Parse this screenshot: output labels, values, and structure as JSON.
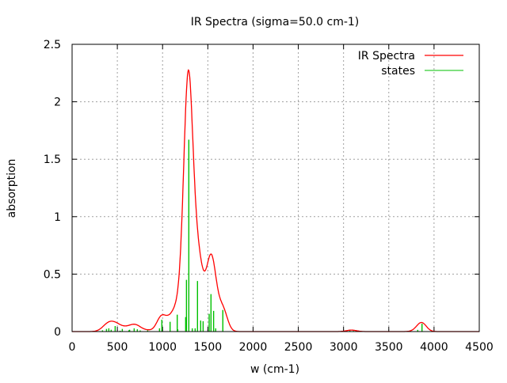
{
  "chart_data": {
    "type": "line",
    "title": "IR Spectra (sigma=50.0 cm-1)",
    "xlabel": "w (cm-1)",
    "ylabel": "absorption",
    "xlim": [
      0,
      4500
    ],
    "ylim": [
      0,
      2.5
    ],
    "xticks": [
      "0",
      "500",
      "1000",
      "1500",
      "2000",
      "2500",
      "3000",
      "3500",
      "4000",
      "4500"
    ],
    "yticks": [
      "0",
      "0.5",
      "1",
      "1.5",
      "2",
      "2.5"
    ],
    "grid": true,
    "legend_position": "top-right",
    "sigma": 50.0,
    "series": [
      {
        "name": "IR Spectra",
        "color": "#ff0000",
        "kind": "gaussian-broadened sum of states"
      },
      {
        "name": "states",
        "color": "#00c000",
        "kind": "impulses",
        "x": [
          336,
          380,
          406,
          432,
          476,
          531,
          555,
          627,
          636,
          686,
          721,
          753,
          835,
          966,
          992,
          1083,
          1162,
          1168,
          1255,
          1264,
          1290,
          1328,
          1360,
          1386,
          1421,
          1448,
          1515,
          1535,
          1564,
          1587,
          1666,
          3070,
          3110,
          3820,
          3867
        ],
        "y": [
          0.011,
          0.023,
          0.028,
          0.016,
          0.048,
          0.007,
          0.023,
          0.011,
          0.016,
          0.028,
          0.02,
          0.01,
          0.01,
          0.028,
          0.103,
          0.085,
          0.147,
          0.02,
          0.126,
          0.45,
          1.67,
          0.028,
          0.028,
          0.44,
          0.096,
          0.09,
          0.154,
          0.326,
          0.18,
          0.028,
          0.188,
          0.008,
          0.006,
          0.015,
          0.069
        ]
      }
    ]
  }
}
